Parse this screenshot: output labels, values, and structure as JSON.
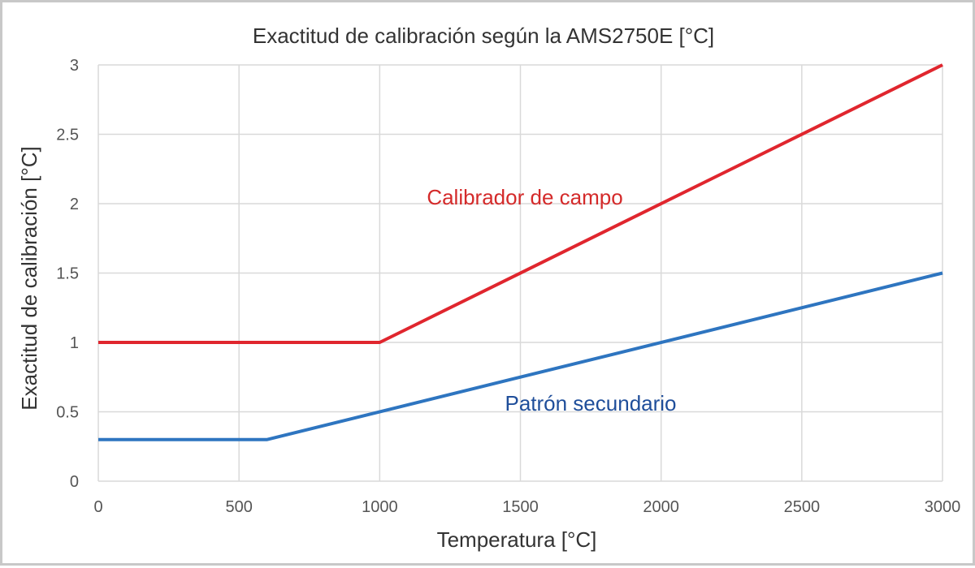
{
  "chart_data": {
    "type": "line",
    "title": "Exactitud de calibración según la AMS2750E [°C]",
    "xlabel": "Temperatura [°C]",
    "ylabel": "Exactitud de calibración [°C]",
    "xlim": [
      0,
      3000
    ],
    "ylim": [
      0,
      3
    ],
    "xticks": [
      "0",
      "500",
      "1000",
      "1500",
      "2000",
      "2500",
      "3000"
    ],
    "yticks": [
      "0",
      "0.5",
      "1",
      "1.5",
      "2",
      "2.5",
      "3"
    ],
    "grid": true,
    "legend": "none (inline labels)",
    "series": [
      {
        "name": "Calibrador de campo",
        "color": "#e0262e",
        "label_color": "#d42a2a",
        "x": [
          0,
          1000,
          3000
        ],
        "y": [
          1,
          1,
          3
        ]
      },
      {
        "name": "Patrón secundario",
        "color": "#2e75c0",
        "label_color": "#1f4e9a",
        "x": [
          0,
          600,
          3000
        ],
        "y": [
          0.3,
          0.3,
          1.5
        ]
      }
    ]
  }
}
